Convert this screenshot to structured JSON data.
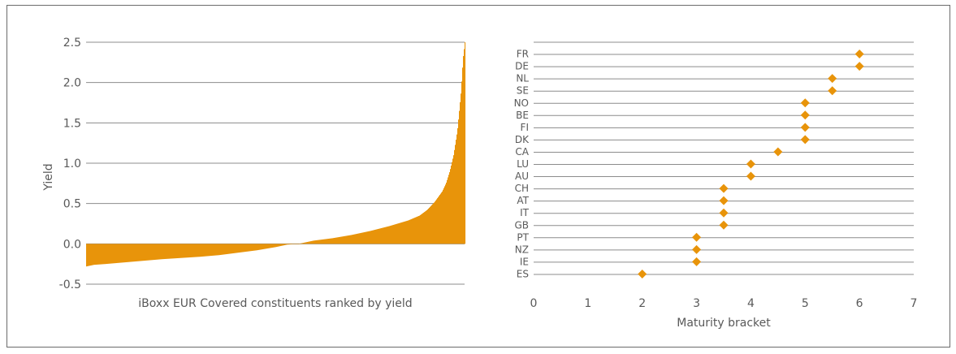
{
  "colors": {
    "accent": "#e8940a",
    "grid": "#8c8c8c",
    "text": "#595959"
  },
  "chart_data": [
    {
      "type": "bar",
      "xlabel": "iBoxx EUR Covered constituents ranked by yield",
      "ylabel": "Yield",
      "ylim": [
        -0.5,
        2.5
      ],
      "yticks": [
        "2.5",
        "2.0",
        "1.5",
        "1.0",
        "0.5",
        "0.0",
        "-0.5"
      ],
      "grid": true,
      "profile": [
        [
          0.0,
          -0.28
        ],
        [
          0.02,
          -0.26
        ],
        [
          0.05,
          -0.25
        ],
        [
          0.1,
          -0.23
        ],
        [
          0.15,
          -0.21
        ],
        [
          0.2,
          -0.19
        ],
        [
          0.25,
          -0.175
        ],
        [
          0.3,
          -0.16
        ],
        [
          0.35,
          -0.14
        ],
        [
          0.4,
          -0.11
        ],
        [
          0.45,
          -0.08
        ],
        [
          0.5,
          -0.04
        ],
        [
          0.53,
          -0.01
        ],
        [
          0.56,
          0.0
        ],
        [
          0.6,
          0.04
        ],
        [
          0.65,
          0.07
        ],
        [
          0.7,
          0.11
        ],
        [
          0.75,
          0.16
        ],
        [
          0.8,
          0.22
        ],
        [
          0.85,
          0.29
        ],
        [
          0.88,
          0.35
        ],
        [
          0.9,
          0.42
        ],
        [
          0.92,
          0.52
        ],
        [
          0.94,
          0.65
        ],
        [
          0.95,
          0.75
        ],
        [
          0.96,
          0.9
        ],
        [
          0.97,
          1.1
        ],
        [
          0.98,
          1.4
        ],
        [
          0.99,
          1.9
        ],
        [
          0.995,
          2.3
        ],
        [
          1.0,
          2.5
        ]
      ]
    },
    {
      "type": "scatter",
      "xlabel": "Maturity bracket",
      "xlim": [
        0,
        7
      ],
      "xticks": [
        "0",
        "1",
        "2",
        "3",
        "4",
        "5",
        "6",
        "7"
      ],
      "grid": true,
      "categories": [
        "FR",
        "DE",
        "NL",
        "SE",
        "NO",
        "BE",
        "FI",
        "DK",
        "CA",
        "LU",
        "AU",
        "CH",
        "AT",
        "IT",
        "GB",
        "PT",
        "NZ",
        "IE",
        "ES"
      ],
      "values": [
        6,
        6,
        5.5,
        5.5,
        5,
        5,
        5,
        5,
        4.5,
        4,
        4,
        3.5,
        3.5,
        3.5,
        3.5,
        3,
        3,
        3,
        2
      ]
    }
  ]
}
